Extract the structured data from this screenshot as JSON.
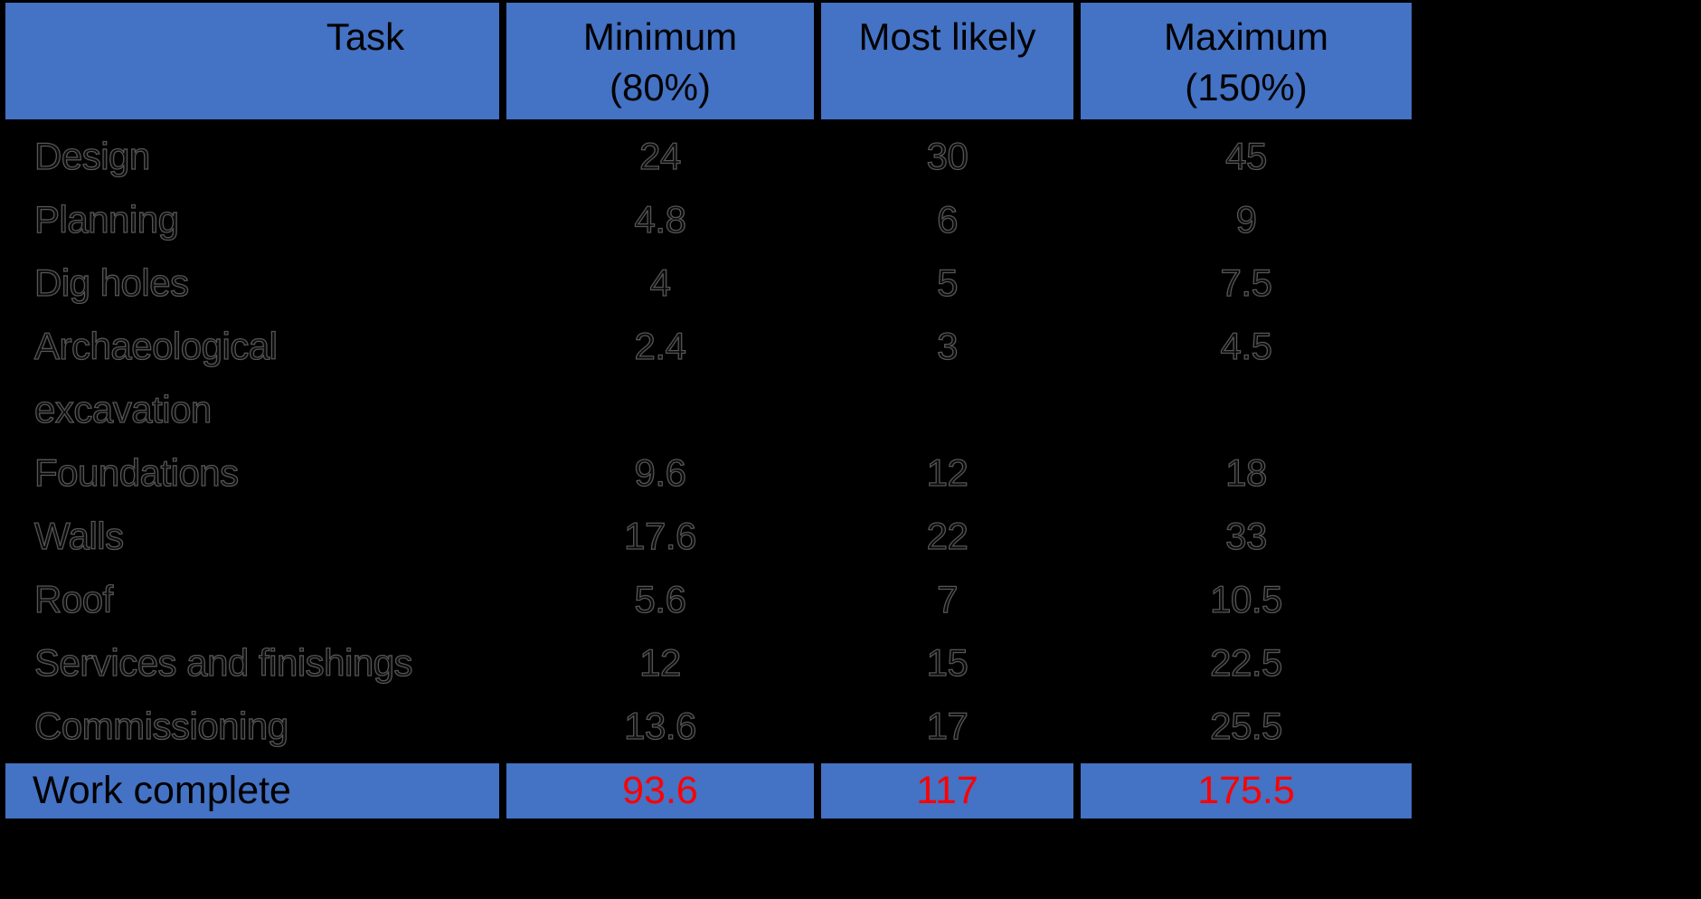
{
  "table": {
    "columns": [
      "Task",
      "Minimum\n(80%)",
      "Most likely",
      "Maximum\n(150%)"
    ],
    "rows": [
      {
        "task": "Design",
        "min": "24",
        "likely": "30",
        "max": "45"
      },
      {
        "task": "Planning",
        "min": "4.8",
        "likely": "6",
        "max": "9"
      },
      {
        "task": "Dig holes",
        "min": "4",
        "likely": "5",
        "max": "7.5"
      },
      {
        "task": "Archaeological\nexcavation",
        "min": "2.4",
        "likely": "3",
        "max": "4.5"
      },
      {
        "task": "Foundations",
        "min": "9.6",
        "likely": "12",
        "max": "18"
      },
      {
        "task": "Walls",
        "min": "17.6",
        "likely": "22",
        "max": "33"
      },
      {
        "task": "Roof",
        "min": "5.6",
        "likely": "7",
        "max": "10.5"
      },
      {
        "task": "Services and finishings",
        "min": "12",
        "likely": "15",
        "max": "22.5"
      },
      {
        "task": "Commissioning",
        "min": "13.6",
        "likely": "17",
        "max": "25.5"
      }
    ],
    "total_row": {
      "label": "Work complete",
      "min": "93.6",
      "likely": "117",
      "max": "175.5"
    }
  },
  "colors": {
    "background": "#000000",
    "header_bg": "#4472C4",
    "total_bg": "#4472C4",
    "header_text": "#000000",
    "total_label_text": "#000000",
    "total_value_text": "#FF0000",
    "body_text_outline": "#555555",
    "grid_line": "#000000"
  },
  "chart_data": {
    "type": "table",
    "columns": [
      "Task",
      "Minimum (80%)",
      "Most likely",
      "Maximum (150%)"
    ],
    "rows": [
      [
        "Design",
        24,
        30,
        45
      ],
      [
        "Planning",
        4.8,
        6,
        9
      ],
      [
        "Dig holes",
        4,
        5,
        7.5
      ],
      [
        "Archaeological excavation",
        2.4,
        3,
        4.5
      ],
      [
        "Foundations",
        9.6,
        12,
        18
      ],
      [
        "Walls",
        17.6,
        22,
        33
      ],
      [
        "Roof",
        5.6,
        7,
        10.5
      ],
      [
        "Services and finishings",
        12,
        15,
        22.5
      ],
      [
        "Commissioning",
        13.6,
        17,
        25.5
      ]
    ],
    "total_row": [
      "Work complete",
      93.6,
      117,
      175.5
    ],
    "layout_hints": {
      "header_fill": "#4472C4",
      "total_fill": "#4472C4",
      "total_values_color": "#FF0000",
      "background": "black",
      "value_columns_align": "center"
    }
  }
}
